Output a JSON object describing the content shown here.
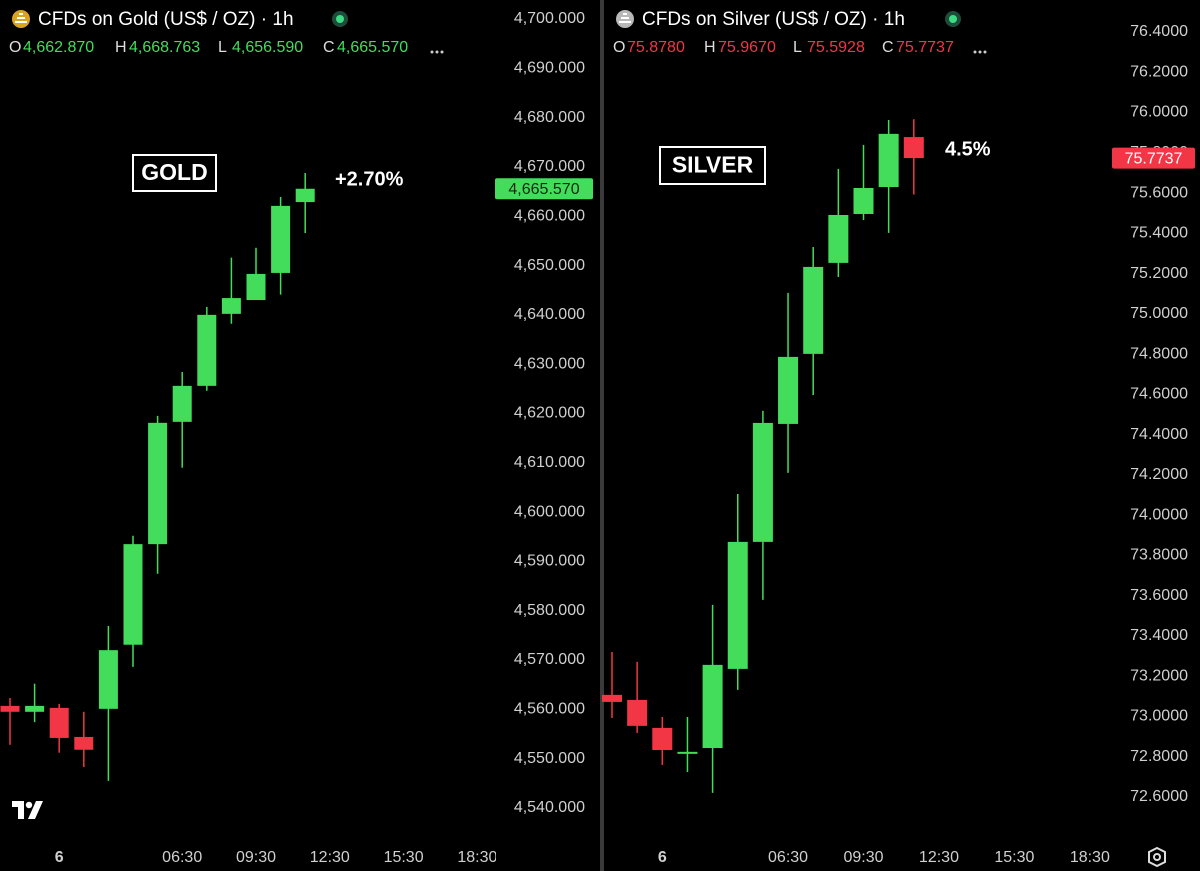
{
  "chart_data": [
    {
      "type": "candlestick",
      "title": "CFDs on Gold (US$ / OZ) · 1h",
      "ohlc_legend": [
        {
          "key": "O",
          "label": "4,662.870"
        },
        {
          "key": "H",
          "label": "4,668.763"
        },
        {
          "key": "L",
          "label": "4,656.590"
        },
        {
          "key": "C",
          "label": "4,665.570"
        }
      ],
      "last_price_label": "4,665.570",
      "annotations": [
        "GOLD",
        "+2.70%"
      ],
      "categories": [
        null,
        null,
        "6",
        null,
        null,
        null,
        null,
        "06:30",
        null,
        null,
        "09:30",
        null,
        null,
        "12:30",
        null,
        null,
        "15:30",
        null,
        null,
        "18:30"
      ],
      "open": [
        4560.7,
        4559.5,
        4560.3,
        4554.4,
        4560.1,
        4573.1,
        4593.5,
        4618.3,
        4625.6,
        4640.2,
        4643.0,
        4648.5,
        4662.87,
        null,
        null,
        null,
        null,
        null,
        null,
        null
      ],
      "high": [
        4562.3,
        4565.2,
        4561.1,
        4559.5,
        4576.9,
        4595.2,
        4619.5,
        4628.4,
        4641.6,
        4651.6,
        4653.6,
        4663.9,
        4668.763,
        null,
        null,
        null,
        null,
        null,
        null,
        null
      ],
      "low": [
        4552.8,
        4557.4,
        4551.2,
        4548.3,
        4545.5,
        4568.6,
        4587.5,
        4609.0,
        4624.6,
        4638.2,
        4643.0,
        4644.1,
        4656.59,
        null,
        null,
        null,
        null,
        null,
        null,
        null
      ],
      "close": [
        4559.5,
        4560.7,
        4554.2,
        4551.8,
        4572.0,
        4593.5,
        4618.1,
        4625.6,
        4640.0,
        4643.4,
        4648.3,
        4662.1,
        4665.57,
        null,
        null,
        null,
        null,
        null,
        null,
        null
      ],
      "up_color": "#44dd5b",
      "down_color": "#f23645",
      "ylim": [
        4533.5,
        4703.85
      ],
      "yticks": [
        {
          "value": 4540,
          "label": "4,540.000"
        },
        {
          "value": 4550,
          "label": "4,550.000"
        },
        {
          "value": 4560,
          "label": "4,560.000"
        },
        {
          "value": 4570,
          "label": "4,570.000"
        },
        {
          "value": 4580,
          "label": "4,580.000"
        },
        {
          "value": 4590,
          "label": "4,590.000"
        },
        {
          "value": 4600,
          "label": "4,600.000"
        },
        {
          "value": 4610,
          "label": "4,610.000"
        },
        {
          "value": 4620,
          "label": "4,620.000"
        },
        {
          "value": 4630,
          "label": "4,630.000"
        },
        {
          "value": 4640,
          "label": "4,640.000"
        },
        {
          "value": 4650,
          "label": "4,650.000"
        },
        {
          "value": 4660,
          "label": "4,660.000"
        },
        {
          "value": 4670,
          "label": "4,670.000"
        },
        {
          "value": 4680,
          "label": "4,680.000"
        },
        {
          "value": 4690,
          "label": "4,690.000"
        },
        {
          "value": 4700,
          "label": "4,700.000"
        }
      ],
      "grid": false
    },
    {
      "type": "candlestick",
      "title": "CFDs on Silver (US$ / OZ) · 1h",
      "ohlc_legend": [
        {
          "key": "O",
          "label": "75.8780"
        },
        {
          "key": "H",
          "label": "75.9670"
        },
        {
          "key": "L",
          "label": "75.5928"
        },
        {
          "key": "C",
          "label": "75.7737"
        }
      ],
      "last_price_label": "75.7737",
      "annotations": [
        "SILVER",
        "4.5%"
      ],
      "categories": [
        null,
        null,
        "6",
        null,
        null,
        null,
        null,
        "06:30",
        null,
        null,
        "09:30",
        null,
        null,
        "12:30",
        null,
        null,
        "15:30",
        null,
        null,
        "18:30"
      ],
      "open": [
        73.107,
        73.082,
        72.943,
        72.814,
        72.843,
        73.236,
        73.867,
        74.453,
        74.801,
        75.253,
        75.496,
        75.63,
        75.878,
        null,
        null,
        null,
        null,
        null,
        null,
        null
      ],
      "high": [
        73.32,
        73.271,
        72.997,
        72.997,
        73.554,
        74.105,
        74.518,
        75.104,
        75.332,
        75.72,
        75.839,
        75.963,
        75.967,
        null,
        null,
        null,
        null,
        null,
        null,
        null
      ],
      "low": [
        72.992,
        72.918,
        72.759,
        72.724,
        72.62,
        73.132,
        73.579,
        74.21,
        74.597,
        75.183,
        75.466,
        75.402,
        75.5928,
        null,
        null,
        null,
        null,
        null,
        null,
        null
      ],
      "close": [
        73.072,
        72.953,
        72.833,
        72.824,
        73.256,
        73.867,
        74.458,
        74.786,
        75.233,
        75.491,
        75.625,
        75.894,
        75.7737,
        null,
        null,
        null,
        null,
        null,
        null,
        null
      ],
      "up_color": "#44dd5b",
      "down_color": "#f23645",
      "ylim": [
        72.386,
        76.559
      ],
      "yticks": [
        {
          "value": 72.6,
          "label": "72.6000"
        },
        {
          "value": 72.8,
          "label": "72.8000"
        },
        {
          "value": 73.0,
          "label": "73.0000"
        },
        {
          "value": 73.2,
          "label": "73.2000"
        },
        {
          "value": 73.4,
          "label": "73.4000"
        },
        {
          "value": 73.6,
          "label": "73.6000"
        },
        {
          "value": 73.8,
          "label": "73.8000"
        },
        {
          "value": 74.0,
          "label": "74.0000"
        },
        {
          "value": 74.2,
          "label": "74.2000"
        },
        {
          "value": 74.4,
          "label": "74.4000"
        },
        {
          "value": 74.6,
          "label": "74.6000"
        },
        {
          "value": 74.8,
          "label": "74.8000"
        },
        {
          "value": 75.0,
          "label": "75.0000"
        },
        {
          "value": 75.2,
          "label": "75.2000"
        },
        {
          "value": 75.4,
          "label": "75.4000"
        },
        {
          "value": 75.6,
          "label": "75.6000"
        },
        {
          "value": 75.8,
          "label": "75.8000"
        },
        {
          "value": 76.0,
          "label": "76.0000"
        },
        {
          "value": 76.2,
          "label": "76.2000"
        },
        {
          "value": 76.4,
          "label": "76.4000"
        }
      ],
      "grid": false
    }
  ]
}
